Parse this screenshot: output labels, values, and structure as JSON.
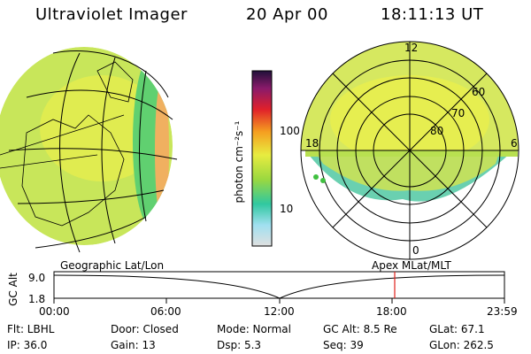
{
  "header": {
    "instrument": "Ultraviolet Imager",
    "date": "20 Apr 00",
    "time": "18:11:13 UT"
  },
  "colorbar": {
    "unit_label": "photon cm⁻²s⁻¹",
    "tick_100": "100",
    "tick_10": "10"
  },
  "polar_plot": {
    "mlt_labels": {
      "top": "12",
      "left": "18",
      "right": "6",
      "bottom": "0"
    },
    "lat_labels": [
      "60",
      "70",
      "80"
    ]
  },
  "timeline": {
    "left_label": "Geographic Lat/Lon",
    "right_label": "Apex MLat/MLT",
    "axis_title": "GC Alt",
    "y_ticks": [
      "9.0",
      "1.8"
    ],
    "x_ticks": [
      "00:00",
      "06:00",
      "12:00",
      "18:00",
      "23:59"
    ],
    "marker_time": "18:11",
    "marker_color": "#e0201a"
  },
  "info": {
    "flt": "Flt: LBHL",
    "ip": "IP: 36.0",
    "door": "Door: Closed",
    "gain": "Gain: 13",
    "mode": "Mode: Normal",
    "dsp": "Dsp:   5.3",
    "gcalt": "GC Alt: 8.5 Re",
    "seq": "Seq: 39",
    "glat": "GLat:  67.1",
    "glon": "GLon: 262.5"
  }
}
